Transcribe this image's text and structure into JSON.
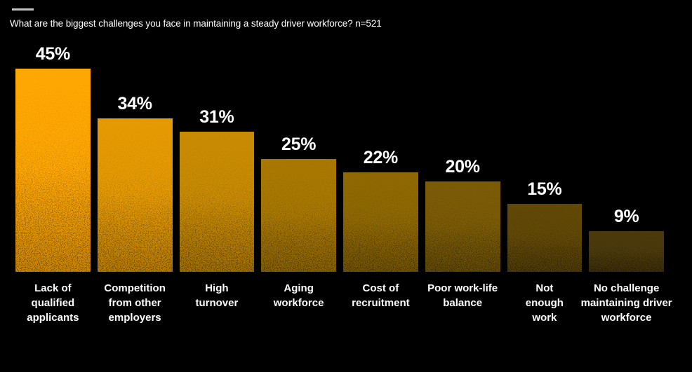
{
  "page": {
    "background": "#000000",
    "accent_dash_color": "#c4c4c4"
  },
  "chart_data": {
    "type": "bar",
    "orientation": "vertical",
    "title": "What are the biggest challenges you face in maintaining a steady driver workforce? n=521",
    "categories": [
      "Lack of qualified applicants",
      "Competition from other employers",
      "High turnover",
      "Aging workforce",
      "Cost of recruitment",
      "Poor work-life balance",
      "Not enough work",
      "No challenge maintaining driver workforce"
    ],
    "values": [
      45,
      34,
      31,
      25,
      22,
      20,
      15,
      9
    ],
    "value_labels": [
      "45%",
      "34%",
      "31%",
      "25%",
      "22%",
      "20%",
      "15%",
      "9%"
    ],
    "label_lines": [
      [
        "Lack of",
        "qualified",
        "applicants"
      ],
      [
        "Competition",
        "from other",
        "employers"
      ],
      [
        "High",
        "turnover"
      ],
      [
        "Aging",
        "workforce"
      ],
      [
        "Cost of",
        "recruitment"
      ],
      [
        "Poor work-life",
        "balance"
      ],
      [
        "Not",
        "enough",
        "work"
      ],
      [
        "No challenge",
        "maintaining driver",
        "workforce"
      ]
    ],
    "bar_colors": [
      "#FFA702",
      "#E59A02",
      "#C98B02",
      "#A97802",
      "#8F6802",
      "#7B5B06",
      "#614807",
      "#4B3A0B"
    ],
    "unit": "%",
    "ylim": [
      0,
      45
    ],
    "grid": false,
    "legend": "none",
    "value_label_color": "#ffffff",
    "category_label_color": "#ffffff"
  }
}
